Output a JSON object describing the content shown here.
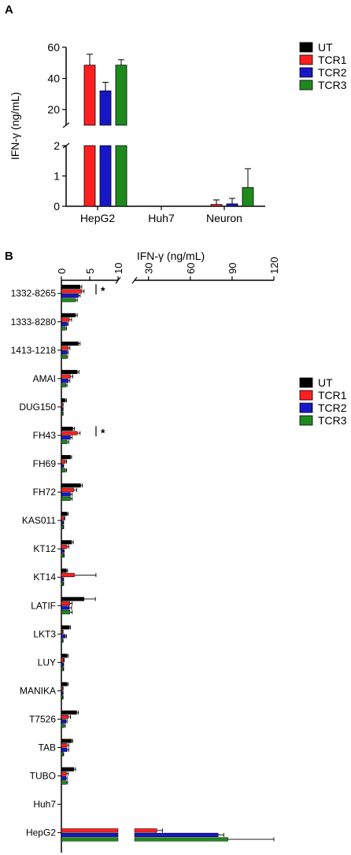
{
  "colors": {
    "UT": "#000000",
    "TCR1": "#ff1f1f",
    "TCR2": "#1717c8",
    "TCR3": "#1e8a1e"
  },
  "chart_data": [
    {
      "panel_label": "A",
      "type": "bar",
      "ylabel": "IFN-γ (ng/mL)",
      "axis_break": {
        "lower": [
          0,
          2
        ],
        "upper": [
          10,
          60
        ]
      },
      "yticks_lower": [
        "0",
        "1",
        "2"
      ],
      "yticks_upper": [
        "20",
        "40",
        "60"
      ],
      "categories": [
        "HepG2",
        "Huh7",
        "Neuron"
      ],
      "legend": {
        "position": "right",
        "entries": [
          "UT",
          "TCR1",
          "TCR2",
          "TCR3"
        ]
      },
      "series": [
        {
          "name": "UT",
          "values": [
            0,
            0,
            0
          ],
          "errors": [
            0,
            0,
            0
          ]
        },
        {
          "name": "TCR1",
          "values": [
            48.5,
            0,
            0.06
          ],
          "errors": [
            7.0,
            0,
            0.15
          ]
        },
        {
          "name": "TCR2",
          "values": [
            32.0,
            0,
            0.08
          ],
          "errors": [
            5.5,
            0,
            0.18
          ]
        },
        {
          "name": "TCR3",
          "values": [
            48.5,
            0,
            0.62
          ],
          "errors": [
            3.5,
            0,
            0.62
          ]
        }
      ]
    },
    {
      "panel_label": "B",
      "type": "bar",
      "orientation": "horizontal",
      "xlabel": "IFN-γ (ng/mL)",
      "axis_break": {
        "first": [
          0,
          10
        ],
        "second": [
          20,
          120
        ]
      },
      "xticks_first": [
        "0",
        "5",
        "10"
      ],
      "xticks_second": [
        "30",
        "60",
        "90",
        "120"
      ],
      "significance": [
        {
          "category": "1332-8265",
          "label": "*"
        },
        {
          "category": "FH43",
          "label": "*"
        }
      ],
      "categories": [
        "1332-8265",
        "1333-8280",
        "1413-1218",
        "AMAI",
        "DUG150",
        "FH43",
        "FH69",
        "FH72",
        "KAS011",
        "KT12",
        "KT14",
        "LATIF",
        "LKT3",
        "LUY",
        "MANIKA",
        "T7526",
        "TAB",
        "TUBO",
        "Huh7",
        "HepG2"
      ],
      "legend": {
        "position": "right",
        "entries": [
          "UT",
          "TCR1",
          "TCR2",
          "TCR3"
        ]
      },
      "series": [
        {
          "name": "UT",
          "values": [
            3.3,
            2.5,
            3.0,
            2.8,
            0.7,
            2.0,
            1.6,
            3.4,
            1.0,
            1.8,
            0.9,
            4.0,
            1.4,
            1.0,
            1.0,
            2.7,
            1.8,
            2.2,
            0,
            0
          ],
          "errors": [
            0.3,
            0.3,
            0.3,
            0.3,
            0.2,
            0.3,
            0.2,
            0.3,
            0.2,
            0.3,
            0.2,
            2.0,
            0.2,
            0.2,
            0.2,
            0.3,
            0.2,
            0.3,
            0,
            0
          ]
        },
        {
          "name": "TCR1",
          "values": [
            3.6,
            1.4,
            1.2,
            1.6,
            0.2,
            2.8,
            0.7,
            2.2,
            0.5,
            1.0,
            2.3,
            1.5,
            0.2,
            0.4,
            0.2,
            1.2,
            1.0,
            0.9,
            0,
            36
          ],
          "errors": [
            0.4,
            0.4,
            0.3,
            0.4,
            0.1,
            0.5,
            0.2,
            0.5,
            0.1,
            0.3,
            3.8,
            0.4,
            0.1,
            0.1,
            0.1,
            0.4,
            0.3,
            0.3,
            0,
            4
          ]
        },
        {
          "name": "TCR2",
          "values": [
            3.0,
            1.0,
            1.0,
            1.2,
            0.2,
            1.6,
            0.3,
            1.6,
            0.3,
            0.4,
            0.3,
            1.4,
            0.7,
            0.3,
            0.2,
            0.8,
            1.0,
            0.8,
            0,
            80
          ],
          "errors": [
            0.3,
            0.2,
            0.2,
            0.3,
            0.1,
            0.3,
            0.1,
            0.3,
            0.1,
            0.1,
            0.1,
            0.4,
            0.2,
            0.1,
            0.1,
            0.2,
            0.3,
            0.2,
            0,
            4
          ]
        },
        {
          "name": "TCR3",
          "values": [
            2.5,
            0.7,
            0.9,
            0.8,
            0.2,
            1.0,
            0.7,
            1.6,
            0.3,
            0.4,
            0.3,
            1.5,
            0.2,
            0.3,
            0.2,
            0.5,
            0.3,
            0.9,
            0,
            87
          ],
          "errors": [
            0.3,
            0.2,
            0.2,
            0.2,
            0.1,
            0.3,
            0.2,
            0.3,
            0.1,
            0.1,
            0.1,
            0.4,
            0.1,
            0.1,
            0.1,
            0.2,
            0.1,
            0.2,
            0,
            33
          ]
        }
      ]
    }
  ]
}
